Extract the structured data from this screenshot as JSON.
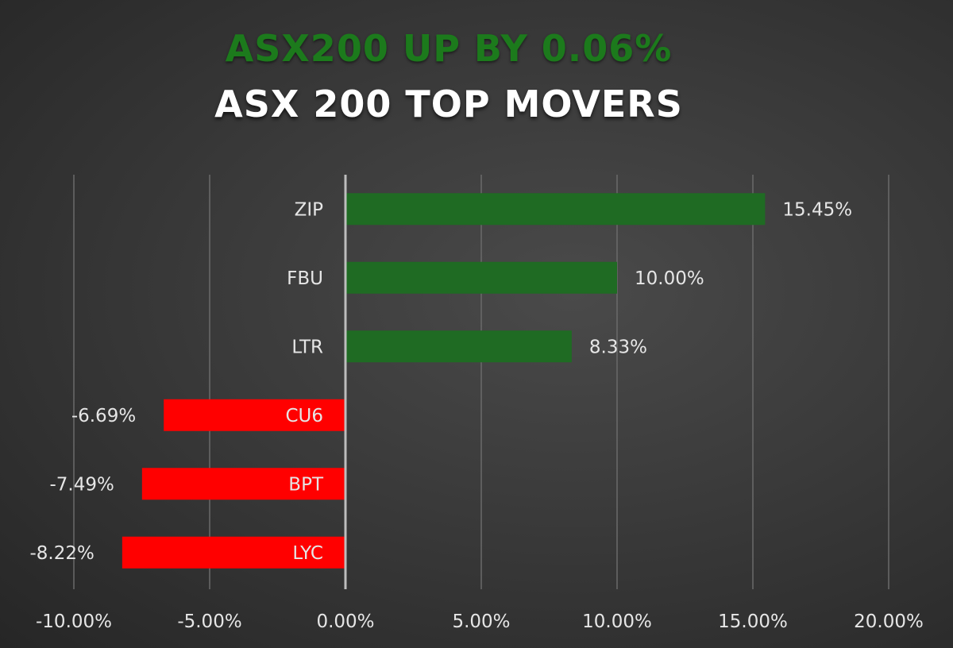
{
  "header": {
    "headline": "ASX200 UP BY 0.06%",
    "subtitle": "ASX 200 TOP MOVERS"
  },
  "colors": {
    "positive": "#1f6b23",
    "negative": "#ff0000",
    "headline": "#1c7a1c",
    "grid": "#6a6a6a",
    "zero_line": "#bdbdbd"
  },
  "chart_data": {
    "type": "bar",
    "orientation": "horizontal",
    "categories": [
      "ZIP",
      "FBU",
      "LTR",
      "CU6",
      "BPT",
      "LYC"
    ],
    "values": [
      15.45,
      10.0,
      8.33,
      -6.69,
      -7.49,
      -8.22
    ],
    "data_labels": [
      "15.45%",
      "10.00%",
      "8.33%",
      "-6.69%",
      "-7.49%",
      "-8.22%"
    ],
    "xlim": [
      -10,
      20
    ],
    "xticks": [
      -10,
      -5,
      0,
      5,
      10,
      15,
      20
    ],
    "xtick_labels": [
      "-10.00%",
      "-5.00%",
      "0.00%",
      "5.00%",
      "10.00%",
      "15.00%",
      "20.00%"
    ],
    "grid": "vertical",
    "legend": "none"
  }
}
